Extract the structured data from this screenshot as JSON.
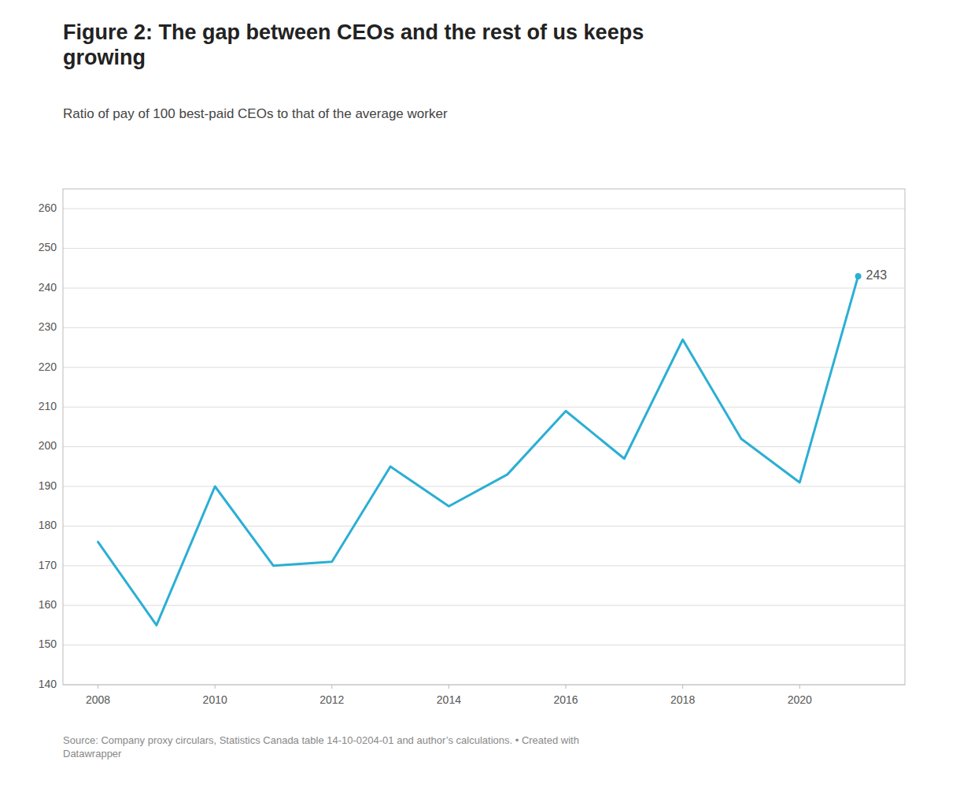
{
  "chart_data": {
    "type": "line",
    "title": "Figure 2: The gap between CEOs and the rest of us keeps\ngrowing",
    "subtitle": "Ratio of pay of 100 best-paid CEOs to that of the average worker",
    "source": "Source: Company proxy circulars, Statistics Canada table 14-10-0204-01 and author’s calculations. • Created with\nDatawrapper",
    "x": [
      2008,
      2009,
      2010,
      2011,
      2012,
      2013,
      2014,
      2015,
      2016,
      2017,
      2018,
      2019,
      2020,
      2021
    ],
    "values": [
      176,
      155,
      190,
      170,
      171,
      195,
      185,
      193,
      209,
      197,
      227,
      202,
      191,
      243
    ],
    "color": "#2bafd4",
    "xlim": [
      2007.4,
      2021.8
    ],
    "xticks": [
      2008,
      2010,
      2012,
      2014,
      2016,
      2018,
      2020
    ],
    "ylim": [
      140,
      265
    ],
    "yticks": [
      140,
      150,
      160,
      170,
      180,
      190,
      200,
      210,
      220,
      230,
      240,
      250,
      260
    ],
    "grid": true,
    "annotations": [
      {
        "text": "243",
        "x": 2021,
        "y": 243
      }
    ]
  }
}
